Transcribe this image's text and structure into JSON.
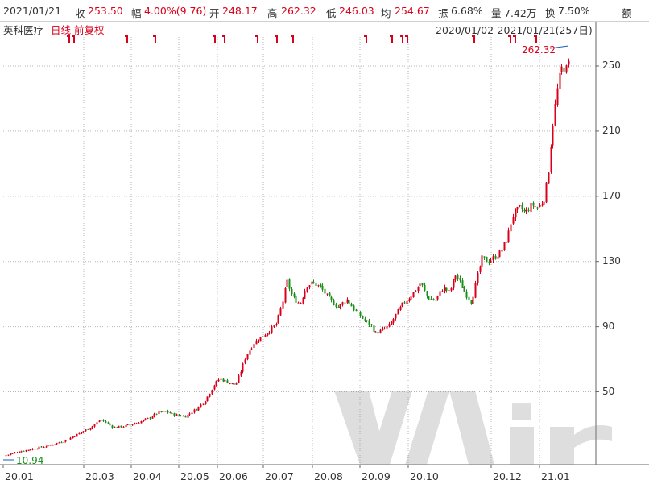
{
  "quote": {
    "date": "2021/01/21",
    "close_label": "收",
    "close": "253.50",
    "range_label": "幅",
    "range": "4.00%(9.76)",
    "open_label": "开",
    "open": "248.17",
    "high_label": "高",
    "high": "262.32",
    "low_label": "低",
    "low": "246.03",
    "avg_label": "均",
    "avg": "254.67",
    "amp_label": "振",
    "amp": "6.68%",
    "vol_label": "量",
    "vol": "7.42万",
    "turnover_label": "换",
    "turnover": "7.50%",
    "amount_label": "额"
  },
  "header": {
    "name": "英科医疗",
    "period": "日线",
    "adjust": "前复权",
    "range_text": "2020/01/02-2021/01/21(257日)"
  },
  "chart_data": {
    "type": "candlestick",
    "y_ticks": [
      "250",
      "210",
      "170",
      "130",
      "90",
      "50"
    ],
    "x_ticks": [
      "20.01",
      "20.03",
      "20.04",
      "20.05",
      "20.06",
      "20.07",
      "20.08",
      "20.09",
      "20.10",
      "20.12",
      "21.01"
    ],
    "max_label": "262.32",
    "min_label": "10.94",
    "colors": {
      "up": "#d9001b",
      "down": "#1a8f1a",
      "grid": "#b5b5b5"
    }
  }
}
